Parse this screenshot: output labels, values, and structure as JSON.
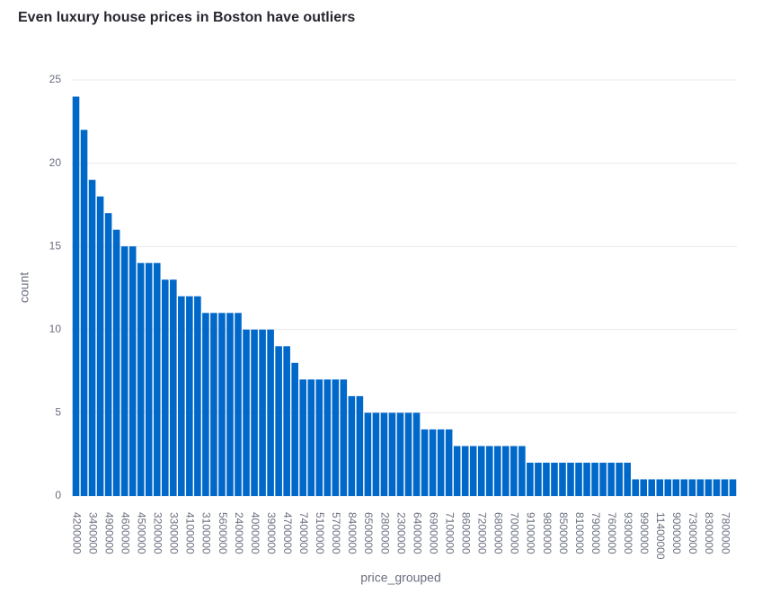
{
  "chart_data": {
    "type": "bar",
    "title": "Even luxury house prices in Boston have outliers",
    "x_label": "price_grouped",
    "y_label": "count",
    "categories": [
      "4200000",
      null,
      "3400000",
      null,
      "4900000",
      null,
      "4600000",
      null,
      "4500000",
      null,
      "3200000",
      null,
      "3300000",
      null,
      "4100000",
      null,
      "3100000",
      null,
      "5600000",
      null,
      "2400000",
      null,
      "4000000",
      null,
      "3900000",
      null,
      "4700000",
      null,
      "7400000",
      null,
      "5100000",
      null,
      "5700000",
      null,
      "8400000",
      null,
      "6500000",
      null,
      "2800000",
      null,
      "2300000",
      null,
      "6400000",
      null,
      "6900000",
      null,
      "7100000",
      null,
      "8600000",
      null,
      "7200000",
      null,
      "6800000",
      null,
      "7000000",
      null,
      "9100000",
      null,
      "9800000",
      null,
      "8500000",
      null,
      "8100000",
      null,
      "7900000",
      null,
      "7600000",
      null,
      "9300000",
      null,
      "9900000",
      null,
      "11400000",
      null,
      "9000000",
      null,
      "7300000",
      null,
      "8300000",
      null,
      "7800000",
      null
    ],
    "values": [
      24,
      22,
      19,
      18,
      17,
      16,
      15,
      15,
      14,
      14,
      14,
      13,
      13,
      12,
      12,
      12,
      11,
      11,
      11,
      11,
      11,
      10,
      10,
      10,
      10,
      9,
      9,
      8,
      7,
      7,
      7,
      7,
      7,
      7,
      6,
      6,
      5,
      5,
      5,
      5,
      5,
      5,
      5,
      4,
      4,
      4,
      4,
      3,
      3,
      3,
      3,
      3,
      3,
      3,
      3,
      3,
      2,
      2,
      2,
      2,
      2,
      2,
      2,
      2,
      2,
      2,
      2,
      2,
      2,
      1,
      1,
      1,
      1,
      1,
      1,
      1,
      1,
      1,
      1,
      1,
      1,
      1
    ],
    "color": "#0068c9",
    "ylim": [
      0,
      25
    ],
    "yticks": [
      0,
      5,
      10,
      15,
      20,
      25
    ],
    "grid": true
  }
}
